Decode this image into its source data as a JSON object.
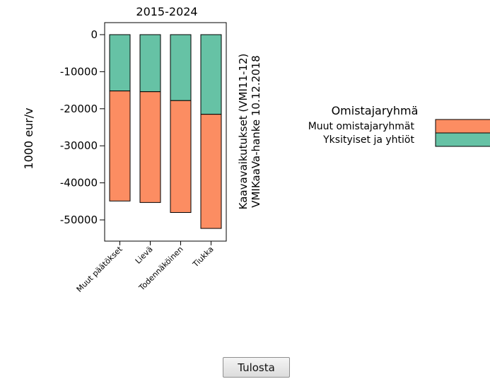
{
  "colors": {
    "muut": "#fc8d62",
    "yksityiset": "#66c2a5",
    "outline": "#000000"
  },
  "chart_data": {
    "type": "bar",
    "stacked": true,
    "title": "2015-2024",
    "ylabel": "1000 eur/v",
    "side_label_line1": "Kaavavaikutukset (VMI11-12)",
    "side_label_line2": "VMIKaaVa-hanke 10.12.2018",
    "categories": [
      "Muut päätökset",
      "Lievä",
      "Todennäköinen",
      "Tiukka"
    ],
    "yticks": [
      0,
      -10000,
      -20000,
      -30000,
      -40000,
      -50000
    ],
    "ylim": [
      -53500,
      2500
    ],
    "grid": false,
    "legend_position": "right",
    "legend_title": "Omistajaryhmä",
    "series": [
      {
        "name": "Yksityiset ja yhtiöt",
        "color": "#66c2a5",
        "values": [
          -15200,
          -15400,
          -17800,
          -21500
        ]
      },
      {
        "name": "Muut omistajaryhmät",
        "color": "#fc8d62",
        "values": [
          -29700,
          -29900,
          -30200,
          -30800
        ]
      }
    ],
    "legend_order": [
      "Muut omistajaryhmät",
      "Yksityiset ja yhtiöt"
    ]
  },
  "controls": {
    "print_label": "Tulosta"
  }
}
